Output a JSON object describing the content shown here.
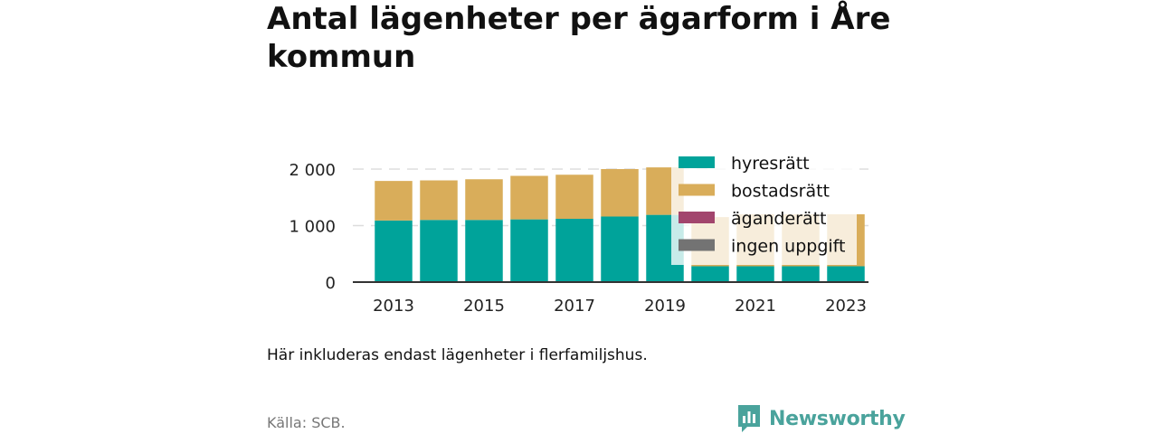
{
  "title": "Antal lägenheter per ägarform i Åre kommun",
  "note": "Här inkluderas endast lägenheter i flerfamiljshus.",
  "source": "Källa: SCB.",
  "brand": {
    "name": "Newsworthy",
    "icon": "newsworthy-logo-icon",
    "color": "#4aa39c"
  },
  "chart_data": {
    "type": "bar",
    "stacked": true,
    "title": "Antal lägenheter per ägarform i Åre kommun",
    "xlabel": "",
    "ylabel": "",
    "categories": [
      "2013",
      "2014",
      "2015",
      "2016",
      "2017",
      "2018",
      "2019",
      "2020",
      "2021",
      "2022",
      "2023"
    ],
    "x_tick_labels": [
      "2013",
      "2015",
      "2017",
      "2019",
      "2021",
      "2023"
    ],
    "y_tick_labels": [
      "0",
      "1 000",
      "2 000"
    ],
    "y_ticks": [
      0,
      1000,
      2000
    ],
    "ylim": [
      0,
      2200
    ],
    "grid": true,
    "legend": "top-right",
    "series": [
      {
        "name": "hyresrätt",
        "color": "#00a39a",
        "values": [
          1090,
          1100,
          1100,
          1110,
          1120,
          1160,
          1190,
          280,
          280,
          280,
          280
        ]
      },
      {
        "name": "bostadsrätt",
        "color": "#d9ad5a",
        "values": [
          700,
          700,
          720,
          770,
          780,
          840,
          840,
          870,
          920,
          920,
          920
        ]
      },
      {
        "name": "äganderätt",
        "color": "#a2456d",
        "values": [
          0,
          0,
          0,
          0,
          0,
          0,
          0,
          0,
          0,
          0,
          0
        ]
      },
      {
        "name": "ingen uppgift",
        "color": "#737373",
        "values": [
          0,
          0,
          0,
          0,
          0,
          0,
          0,
          0,
          0,
          0,
          0
        ]
      }
    ]
  }
}
